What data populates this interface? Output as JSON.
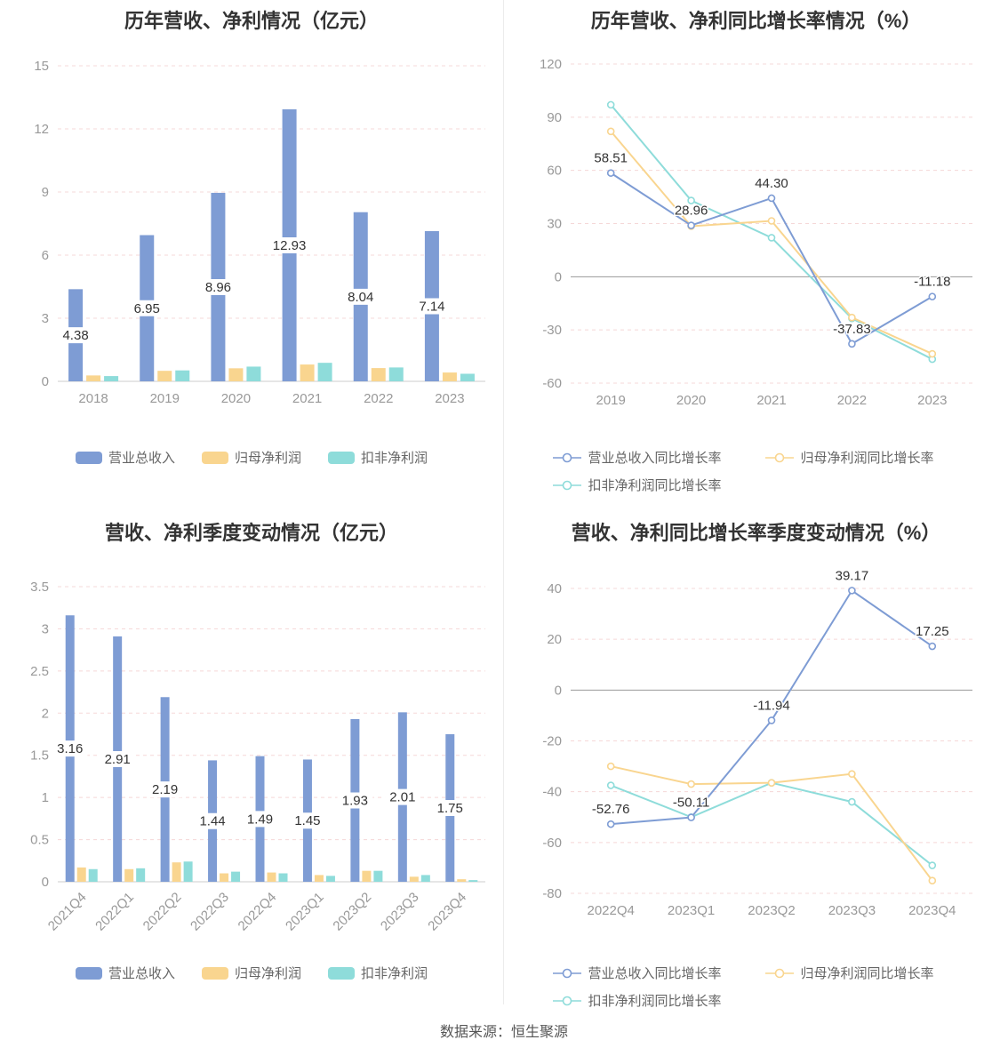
{
  "page": {
    "background": "#ffffff"
  },
  "footer": {
    "source": "数据来源：恒生聚源"
  },
  "colors": {
    "revenue": "#7e9cd4",
    "net_profit": "#f9d58f",
    "non_recurring": "#8edcda",
    "grid": "#f5d8d8",
    "axis": "#cccccc",
    "zero_line": "#999999",
    "tick_text": "#999999",
    "label_text": "#333333",
    "title_text": "#333333",
    "legend_text": "#666666"
  },
  "chart_data": [
    {
      "type": "bar",
      "title": "历年营收、净利情况（亿元）",
      "categories": [
        "2018",
        "2019",
        "2020",
        "2021",
        "2022",
        "2023"
      ],
      "series": [
        {
          "name": "营业总收入",
          "color_key": "revenue",
          "labels": true,
          "values": [
            4.38,
            6.95,
            8.96,
            12.93,
            8.04,
            7.14
          ]
        },
        {
          "name": "归母净利润",
          "color_key": "net_profit",
          "values": [
            0.28,
            0.5,
            0.62,
            0.8,
            0.63,
            0.42
          ]
        },
        {
          "name": "扣非净利润",
          "color_key": "non_recurring",
          "values": [
            0.25,
            0.52,
            0.7,
            0.88,
            0.66,
            0.36
          ]
        }
      ],
      "ylim": [
        0,
        15
      ],
      "yticks": [
        0,
        3,
        6,
        9,
        12,
        15
      ],
      "grid": true,
      "legend_position": "bottom"
    },
    {
      "type": "line",
      "title": "历年营收、净利同比增长率情况（%）",
      "x": [
        "2019",
        "2020",
        "2021",
        "2022",
        "2023"
      ],
      "series": [
        {
          "name": "营业总收入同比增长率",
          "color_key": "revenue",
          "labels": true,
          "label_positions": [
            "above",
            "above",
            "above",
            "above",
            "above"
          ],
          "values": [
            58.51,
            28.96,
            44.3,
            -37.83,
            -11.18
          ]
        },
        {
          "name": "归母净利润同比增长率",
          "color_key": "net_profit",
          "values": [
            82,
            28.5,
            31.5,
            -23,
            -43.5
          ]
        },
        {
          "name": "扣非净利润同比增长率",
          "color_key": "non_recurring",
          "values": [
            97,
            43,
            22,
            -23.5,
            -46.5
          ]
        }
      ],
      "ylim": [
        -60,
        120
      ],
      "yticks": [
        120,
        90,
        60,
        30,
        0,
        -30,
        -60
      ],
      "grid": true,
      "legend_position": "bottom"
    },
    {
      "type": "bar",
      "title": "营收、净利季度变动情况（亿元）",
      "categories": [
        "2021Q4",
        "2022Q1",
        "2022Q2",
        "2022Q3",
        "2022Q4",
        "2023Q1",
        "2023Q2",
        "2023Q3",
        "2023Q4"
      ],
      "series": [
        {
          "name": "营业总收入",
          "color_key": "revenue",
          "labels": true,
          "values": [
            3.16,
            2.91,
            2.19,
            1.44,
            1.49,
            1.45,
            1.93,
            2.01,
            1.75
          ]
        },
        {
          "name": "归母净利润",
          "color_key": "net_profit",
          "values": [
            0.17,
            0.15,
            0.23,
            0.1,
            0.11,
            0.08,
            0.13,
            0.06,
            0.03
          ]
        },
        {
          "name": "扣非净利润",
          "color_key": "non_recurring",
          "values": [
            0.15,
            0.16,
            0.24,
            0.12,
            0.1,
            0.07,
            0.13,
            0.08,
            0.02
          ]
        }
      ],
      "ylim": [
        0,
        3.5
      ],
      "yticks": [
        0,
        0.5,
        1,
        1.5,
        2,
        2.5,
        3,
        3.5
      ],
      "rotate_x_labels": true,
      "grid": true,
      "legend_position": "bottom"
    },
    {
      "type": "line",
      "title": "营收、净利同比增长率季度变动情况（%）",
      "x": [
        "2022Q4",
        "2023Q1",
        "2023Q2",
        "2023Q3",
        "2023Q4"
      ],
      "series": [
        {
          "name": "营业总收入同比增长率",
          "color_key": "revenue",
          "labels": true,
          "label_positions": [
            "above",
            "above",
            "above",
            "above",
            "above"
          ],
          "values": [
            -52.76,
            -50.11,
            -11.94,
            39.17,
            17.25
          ]
        },
        {
          "name": "归母净利润同比增长率",
          "color_key": "net_profit",
          "values": [
            -30,
            -37,
            -36.5,
            -33,
            -75
          ]
        },
        {
          "name": "扣非净利润同比增长率",
          "color_key": "non_recurring",
          "values": [
            -37.5,
            -50,
            -36.5,
            -44,
            -69
          ]
        }
      ],
      "ylim": [
        -80,
        40
      ],
      "yticks": [
        40,
        20,
        0,
        -20,
        -40,
        -60,
        -80
      ],
      "grid": true,
      "legend_position": "bottom"
    }
  ]
}
